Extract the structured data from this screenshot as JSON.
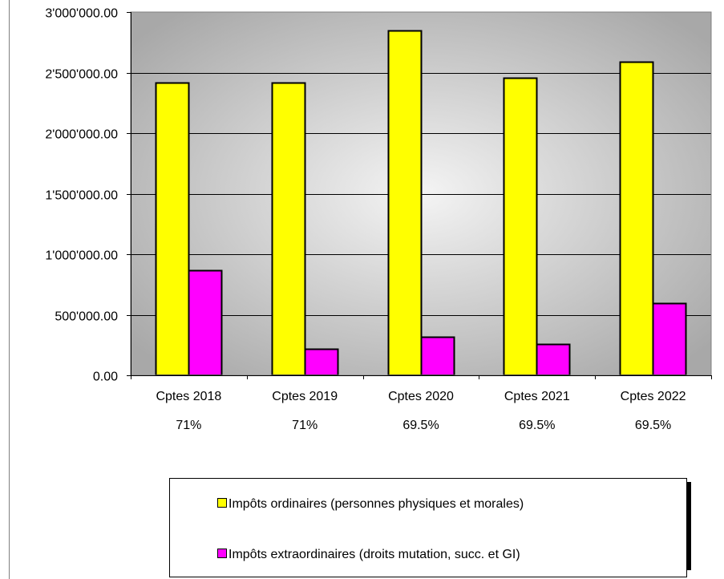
{
  "chart_data": {
    "type": "bar",
    "categories": [
      "Cptes 2018",
      "Cptes 2019",
      "Cptes 2020",
      "Cptes 2021",
      "Cptes 2022"
    ],
    "category_sublabels": [
      "71%",
      "71%",
      "69.5%",
      "69.5%",
      "69.5%"
    ],
    "series": [
      {
        "name": "Impôts ordinaires (personnes physiques et morales)",
        "color": "#ffff00",
        "values": [
          2420000,
          2415000,
          2845000,
          2455000,
          2590000
        ]
      },
      {
        "name": "Impôts extraordinaires (droits mutation, succ. et GI)",
        "color": "#ff00ff",
        "values": [
          865000,
          220000,
          315000,
          260000,
          595000
        ]
      }
    ],
    "title": "",
    "xlabel": "",
    "ylabel": "",
    "ylim": [
      0,
      3000000
    ],
    "yticks": [
      0,
      500000,
      1000000,
      1500000,
      2000000,
      2500000,
      3000000
    ],
    "ytick_labels": [
      "0.00",
      "500'000.00",
      "1'000'000.00",
      "1'500'000.00",
      "2'000'000.00",
      "2'500'000.00",
      "3'000'000.00"
    ],
    "grid": true,
    "legend_position": "bottom"
  }
}
